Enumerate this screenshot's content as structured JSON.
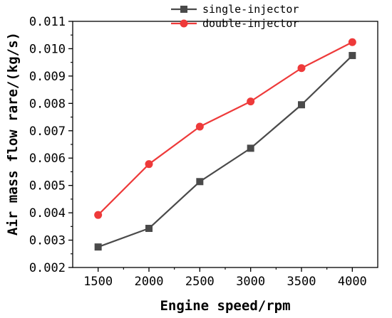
{
  "chart_data": {
    "type": "line",
    "title": "",
    "xlabel": "Engine speed/rpm",
    "ylabel": "Air mass flow rare/(kg/s)",
    "x": [
      1500,
      2000,
      2500,
      3000,
      3500,
      4000
    ],
    "x_tick_labels": [
      "1500",
      "2000",
      "2500",
      "3000",
      "3500",
      "4000"
    ],
    "xlim": [
      1250,
      4250
    ],
    "y_ticks": [
      "0.002",
      "0.003",
      "0.004",
      "0.005",
      "0.006",
      "0.007",
      "0.008",
      "0.009",
      "0.010",
      "0.011"
    ],
    "ylim": [
      0.002,
      0.011
    ],
    "grid": false,
    "legend_position": "top-center",
    "series": [
      {
        "name": "single-injector",
        "marker": "square",
        "color": "#4a4a4a",
        "values": [
          0.00275,
          0.00343,
          0.00514,
          0.00636,
          0.00795,
          0.00975
        ]
      },
      {
        "name": "double-injector",
        "marker": "circle",
        "color": "#ee3a3a",
        "values": [
          0.00392,
          0.00578,
          0.00715,
          0.00807,
          0.00929,
          0.01024
        ]
      }
    ]
  }
}
